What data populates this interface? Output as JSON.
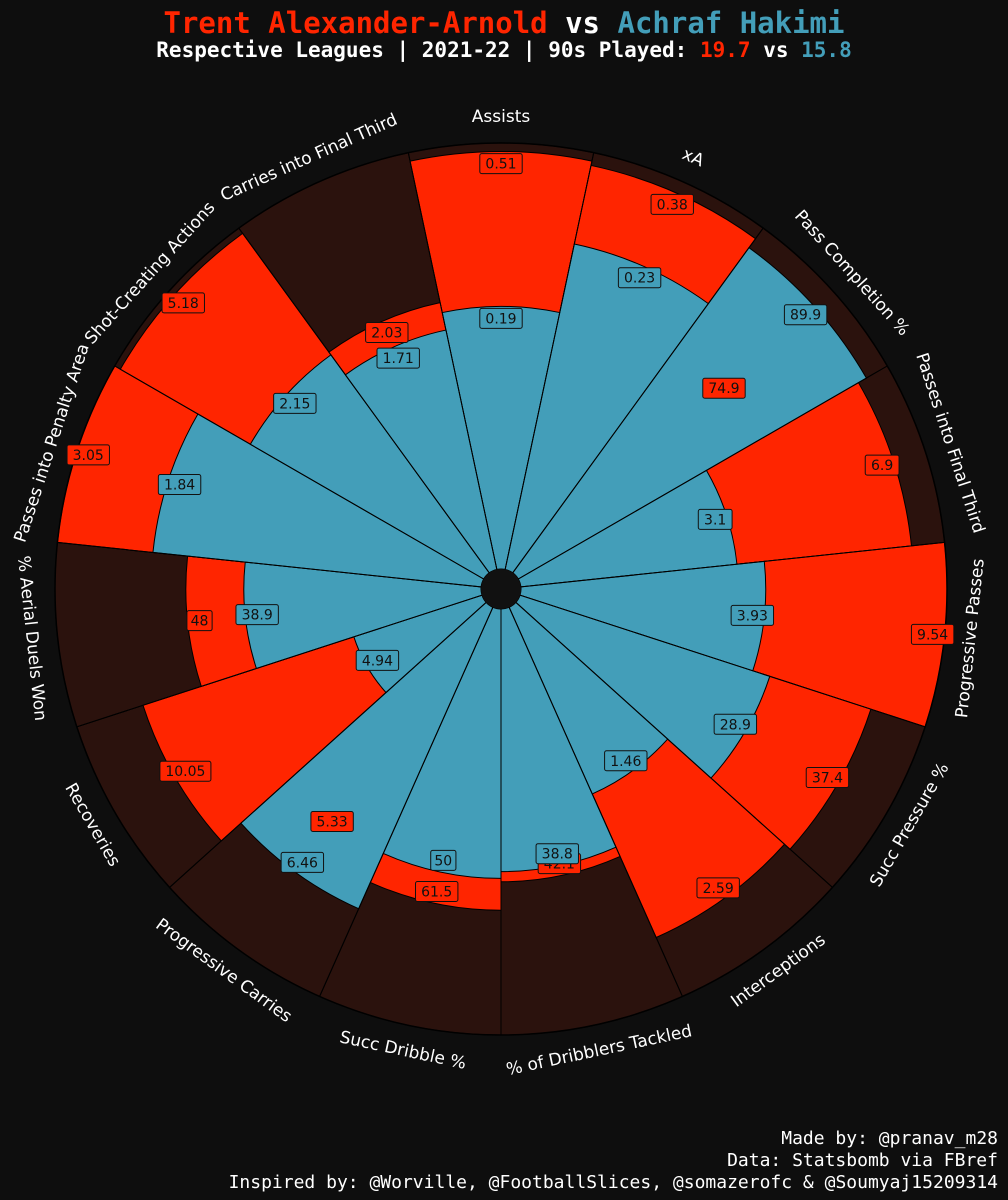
{
  "header": {
    "player1": "Trent Alexander-Arnold",
    "vs": "vs",
    "player2": "Achraf Hakimi",
    "subtitle_prefix": "Respective Leagues | 2021-22 | 90s Played:",
    "p1_90s": "19.7",
    "sub_vs": "vs",
    "p2_90s": "15.8"
  },
  "colors": {
    "player1": "#ff2500",
    "player2": "#439eb9",
    "background": "#0e0e0e",
    "slice_bg": "#2b120d"
  },
  "chart_data": {
    "type": "radar-pizza",
    "categories": [
      "Assists",
      "xA",
      "Pass Completion %",
      "Passes into Final Third",
      "Progressive Passes",
      "Succ Pressure %",
      "Interceptions",
      "% of Dribblers Tackled",
      "Succ Dribble %",
      "Progressive Carries",
      "Recoveries",
      "% Aerial Duels Won",
      "Passes into Penalty Area",
      "Shot-Creating Actions",
      "Carries into Final Third"
    ],
    "series": [
      {
        "name": "Trent Alexander-Arnold",
        "values": [
          0.51,
          0.38,
          74.9,
          6.9,
          9.54,
          37.4,
          2.59,
          42.1,
          61.5,
          5.33,
          10.05,
          48,
          3.05,
          5.18,
          2.03
        ],
        "percentiles": [
          96,
          94,
          47,
          85,
          100,
          75,
          72,
          41,
          50,
          43,
          70,
          48,
          100,
          97,
          41
        ]
      },
      {
        "name": "Achraf Hakimi",
        "values": [
          0.19,
          0.23,
          89.9,
          3.1,
          3.93,
          28.9,
          1.46,
          38.8,
          50,
          6.46,
          4.94,
          38.9,
          1.84,
          2.15,
          1.71
        ],
        "percentiles": [
          38,
          61,
          89,
          26,
          33,
          38,
          23,
          38,
          40,
          60,
          10,
          31,
          60,
          40,
          33
        ]
      }
    ],
    "range": [
      0,
      100
    ]
  },
  "footer": {
    "made_by": "Made by: @pranav_m28",
    "data_source": "Data: Statsbomb via FBref",
    "inspired_by": "Inspired by: @Worville, @FootballSlices, @somazerofc & @Soumyaj15209314"
  }
}
